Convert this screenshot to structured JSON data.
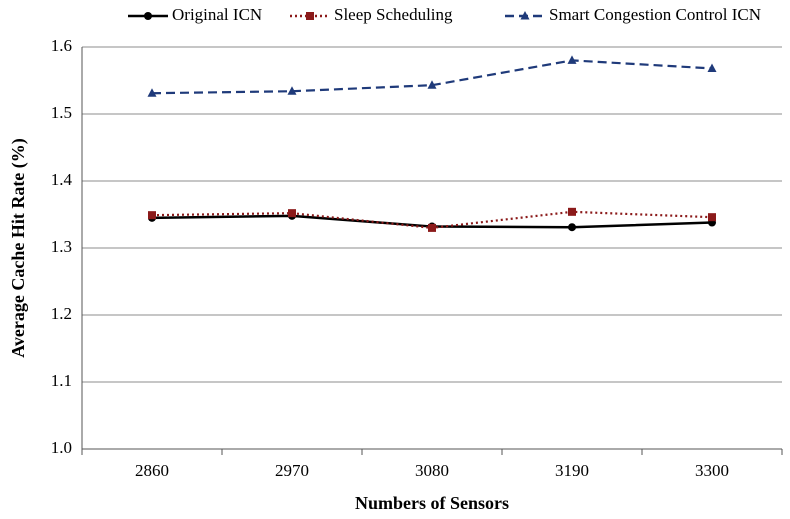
{
  "chart_data": {
    "type": "line",
    "x_label": "Numbers of Sensors",
    "y_label": "Average Cache Hit Rate (%)",
    "categories": [
      "2860",
      "2970",
      "3080",
      "3190",
      "3300"
    ],
    "series": [
      {
        "name": "Original ICN",
        "color": "#000000",
        "dash": "solid",
        "marker": "circle",
        "values": [
          1.345,
          1.348,
          1.332,
          1.331,
          1.338
        ]
      },
      {
        "name": "Sleep Scheduling",
        "color": "#8b1a1a",
        "dash": "dotted",
        "marker": "square",
        "values": [
          1.349,
          1.352,
          1.33,
          1.354,
          1.346
        ]
      },
      {
        "name": "Smart Congestion Control ICN",
        "color": "#1f3a7a",
        "dash": "dashed",
        "marker": "triangle",
        "values": [
          1.531,
          1.534,
          1.543,
          1.58,
          1.568
        ]
      }
    ],
    "ylim": [
      1.0,
      1.6
    ],
    "yticks": [
      {
        "value": 1,
        "label": "1.0"
      },
      1.1,
      1.2,
      1.3,
      1.4,
      1.5,
      1.6
    ],
    "grid": true,
    "legend": "top"
  }
}
